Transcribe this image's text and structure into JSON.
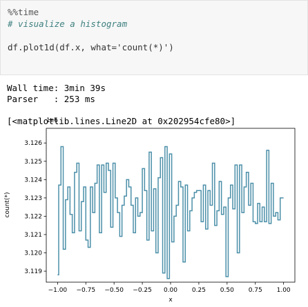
{
  "notebook": {
    "input_lines": [
      "%%time",
      "# visualize a histogram",
      "",
      "df.plot1d(df.x, what='count(*)')"
    ],
    "output_lines": [
      "Wall time: 3min 39s",
      "Parser   : 253 ms",
      "",
      "[<matplotlib.lines.Line2D at 0x202954cfe80>]"
    ]
  },
  "chart_data": {
    "type": "line",
    "drawstyle": "steps",
    "xlabel": "x",
    "ylabel": "count(*)",
    "offset_label": "1e6",
    "xlim": [
      -1.1,
      1.1
    ],
    "ylim": [
      3.1184,
      3.1268
    ],
    "xticks": [
      -1.0,
      -0.75,
      -0.5,
      -0.25,
      0.0,
      0.25,
      0.5,
      0.75,
      1.0
    ],
    "xtick_labels": [
      "−1.00",
      "−0.75",
      "−0.50",
      "−0.25",
      "0.00",
      "0.25",
      "0.50",
      "0.75",
      "1.00"
    ],
    "yticks": [
      3.119,
      3.12,
      3.121,
      3.122,
      3.123,
      3.124,
      3.125,
      3.126
    ],
    "ytick_labels": [
      "3.119",
      "3.120",
      "3.121",
      "3.122",
      "3.123",
      "3.124",
      "3.125",
      "3.126"
    ],
    "line_color": "#4b8fa8",
    "series": [
      {
        "x": [
          -1.0,
          -0.98,
          -0.96,
          -0.94,
          -0.92,
          -0.9,
          -0.88,
          -0.86,
          -0.84,
          -0.82,
          -0.8,
          -0.78,
          -0.76,
          -0.74,
          -0.72,
          -0.7,
          -0.68,
          -0.66,
          -0.64,
          -0.62,
          -0.6,
          -0.58,
          -0.56,
          -0.54,
          -0.52,
          -0.5,
          -0.48,
          -0.46,
          -0.44,
          -0.42,
          -0.4,
          -0.38,
          -0.36,
          -0.34,
          -0.32,
          -0.3,
          -0.28,
          -0.26,
          -0.24,
          -0.22,
          -0.2,
          -0.18,
          -0.16,
          -0.14,
          -0.12,
          -0.1,
          -0.08,
          -0.06,
          -0.04,
          -0.02,
          0.0,
          0.02,
          0.04,
          0.06,
          0.08,
          0.1,
          0.12,
          0.14,
          0.16,
          0.18,
          0.2,
          0.22,
          0.24,
          0.26,
          0.28,
          0.3,
          0.32,
          0.34,
          0.36,
          0.38,
          0.4,
          0.42,
          0.44,
          0.46,
          0.48,
          0.5,
          0.52,
          0.54,
          0.56,
          0.58,
          0.6,
          0.62,
          0.64,
          0.66,
          0.68,
          0.7,
          0.72,
          0.74,
          0.76,
          0.78,
          0.8,
          0.82,
          0.84,
          0.86,
          0.88,
          0.9,
          0.92,
          0.94,
          0.96,
          0.98,
          1.0
        ],
        "y": [
          3.1188,
          3.1237,
          3.1258,
          3.1202,
          3.1229,
          3.1236,
          3.1221,
          3.1211,
          3.1244,
          3.1249,
          3.1212,
          3.1228,
          3.1236,
          3.1207,
          3.1203,
          3.1236,
          3.1222,
          3.1238,
          3.1248,
          3.1211,
          3.1248,
          3.1233,
          3.1249,
          3.1245,
          3.1214,
          3.1249,
          3.123,
          3.1222,
          3.1209,
          3.1226,
          3.1231,
          3.124,
          3.1236,
          3.1226,
          3.1211,
          3.123,
          3.122,
          3.1222,
          3.1246,
          3.1234,
          3.1207,
          3.1255,
          3.1212,
          3.1235,
          3.12,
          3.1241,
          3.1252,
          3.1189,
          3.1258,
          3.1186,
          3.1254,
          3.1206,
          3.122,
          3.1226,
          3.1239,
          3.1236,
          3.1195,
          3.1237,
          3.1212,
          3.1223,
          3.123,
          3.1233,
          3.1234,
          3.1234,
          3.1217,
          3.1237,
          3.1213,
          3.1234,
          3.1226,
          3.1249,
          3.1215,
          3.1223,
          3.1239,
          3.1221,
          3.1225,
          3.1187,
          3.123,
          3.1237,
          3.1224,
          3.1248,
          3.12,
          3.1248,
          3.1222,
          3.1236,
          3.1244,
          3.1226,
          3.1238,
          3.1217,
          3.1216,
          3.1227,
          3.1217,
          3.1225,
          3.1217,
          3.1256,
          3.1216,
          3.1238,
          3.122,
          3.1222,
          3.1218,
          3.123,
          3.123
        ]
      }
    ]
  }
}
